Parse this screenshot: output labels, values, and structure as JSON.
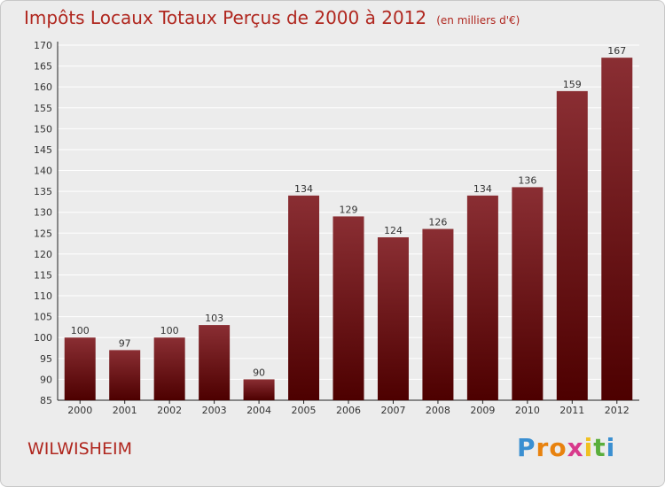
{
  "chart_data": {
    "type": "bar",
    "title": "Impôts Locaux Totaux Perçus de 2000 à 2012",
    "subtitle": "(en milliers d'€)",
    "xlabel": "",
    "ylabel": "",
    "categories": [
      "2000",
      "2001",
      "2002",
      "2003",
      "2004",
      "2005",
      "2006",
      "2007",
      "2008",
      "2009",
      "2010",
      "2011",
      "2012"
    ],
    "values": [
      100,
      97,
      100,
      103,
      90,
      134,
      129,
      124,
      126,
      134,
      136,
      159,
      167
    ],
    "ylim": [
      85,
      170
    ],
    "yticks": [
      85,
      90,
      95,
      100,
      105,
      110,
      115,
      120,
      125,
      130,
      135,
      140,
      145,
      150,
      155,
      160,
      165,
      170
    ],
    "grid": true,
    "colors": {
      "bar_top": "#8a2e33",
      "bar_bottom": "#4d0000",
      "title": "#b0271f",
      "grid": "#ffffff"
    }
  },
  "commune": "WILWISHEIM",
  "logo": {
    "letters": [
      "P",
      "r",
      "o",
      "x",
      "i",
      "t",
      "i"
    ],
    "colors": [
      "#3a8fd1",
      "#e8820e",
      "#e8820e",
      "#d83a8c",
      "#f0c020",
      "#5aae3c",
      "#3a8fd1"
    ]
  }
}
